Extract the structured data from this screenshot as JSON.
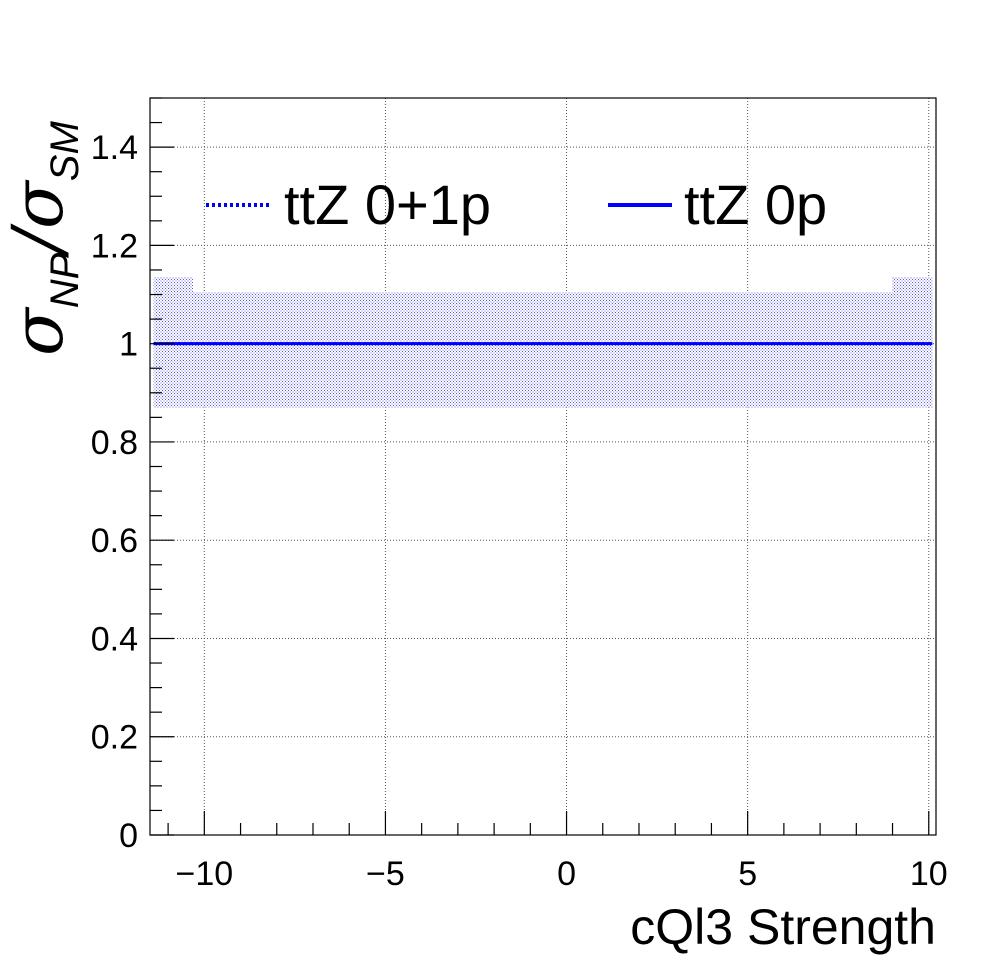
{
  "chart_data": {
    "type": "line",
    "xlabel": "cQl3 Strength",
    "ylabel": {
      "sigma_symbol": "σ",
      "numerator_subscript": "NP",
      "slash": "/",
      "denominator_subscript": "SM"
    },
    "xlim": [
      -11.5,
      10.2
    ],
    "ylim": [
      0,
      1.5
    ],
    "x_ticks": [
      -10,
      -5,
      0,
      5,
      10
    ],
    "x_tick_labels": [
      "−10",
      "−5",
      "0",
      "5",
      "10"
    ],
    "y_ticks": [
      0,
      0.2,
      0.4,
      0.6,
      0.8,
      1,
      1.2,
      1.4
    ],
    "y_tick_labels": [
      "0",
      "0.2",
      "0.4",
      "0.6",
      "0.8",
      "1",
      "1.2",
      "1.4"
    ],
    "grid": true,
    "legend_position": "top",
    "series": [
      {
        "name": "ttZ 0+1p",
        "style": "dotted",
        "color": "#0000ff",
        "x": [
          -11.4,
          10.1
        ],
        "y": [
          1.0,
          1.0
        ],
        "band": [
          {
            "x0": -11.4,
            "x1": -10.3,
            "low": 0.87,
            "high": 1.135
          },
          {
            "x0": -10.3,
            "x1": 9.0,
            "low": 0.87,
            "high": 1.105
          },
          {
            "x0": 9.0,
            "x1": 10.1,
            "low": 0.87,
            "high": 1.135
          }
        ]
      },
      {
        "name": "ttZ 0p",
        "style": "solid",
        "color": "#0000ff",
        "x": [
          -11.4,
          10.1
        ],
        "y": [
          1.0,
          1.0
        ]
      }
    ]
  }
}
